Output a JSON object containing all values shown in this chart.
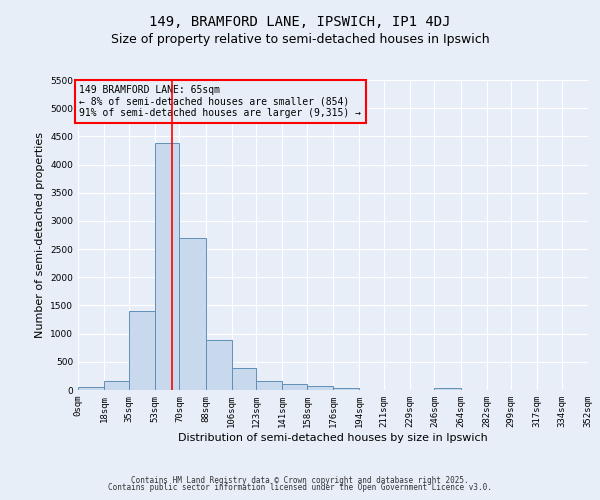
{
  "title": "149, BRAMFORD LANE, IPSWICH, IP1 4DJ",
  "subtitle": "Size of property relative to semi-detached houses in Ipswich",
  "xlabel": "Distribution of semi-detached houses by size in Ipswich",
  "ylabel": "Number of semi-detached properties",
  "bar_color": "#c9d9ed",
  "bar_edge_color": "#6090b8",
  "bar_edge_width": 0.7,
  "background_color": "#e8eef8",
  "grid_color": "#ffffff",
  "bin_edges": [
    0,
    18,
    35,
    53,
    70,
    88,
    106,
    123,
    141,
    158,
    176,
    194,
    211,
    229,
    246,
    264,
    282,
    299,
    317,
    334,
    352
  ],
  "bin_labels": [
    "0sqm",
    "18sqm",
    "35sqm",
    "53sqm",
    "70sqm",
    "88sqm",
    "106sqm",
    "123sqm",
    "141sqm",
    "158sqm",
    "176sqm",
    "194sqm",
    "211sqm",
    "229sqm",
    "246sqm",
    "264sqm",
    "282sqm",
    "299sqm",
    "317sqm",
    "334sqm",
    "352sqm"
  ],
  "counts": [
    50,
    160,
    1400,
    4380,
    2700,
    880,
    390,
    160,
    100,
    65,
    40,
    0,
    0,
    0,
    30,
    0,
    0,
    0,
    0,
    0
  ],
  "ylim": [
    0,
    5500
  ],
  "yticks": [
    0,
    500,
    1000,
    1500,
    2000,
    2500,
    3000,
    3500,
    4000,
    4500,
    5000,
    5500
  ],
  "red_line_x": 65,
  "annotation_title": "149 BRAMFORD LANE: 65sqm",
  "annotation_line1": "← 8% of semi-detached houses are smaller (854)",
  "annotation_line2": "91% of semi-detached houses are larger (9,315) →",
  "footer_line1": "Contains HM Land Registry data © Crown copyright and database right 2025.",
  "footer_line2": "Contains public sector information licensed under the Open Government Licence v3.0.",
  "title_fontsize": 10,
  "subtitle_fontsize": 9,
  "annotation_fontsize": 7,
  "tick_fontsize": 6.5,
  "label_fontsize": 8,
  "footer_fontsize": 5.5
}
